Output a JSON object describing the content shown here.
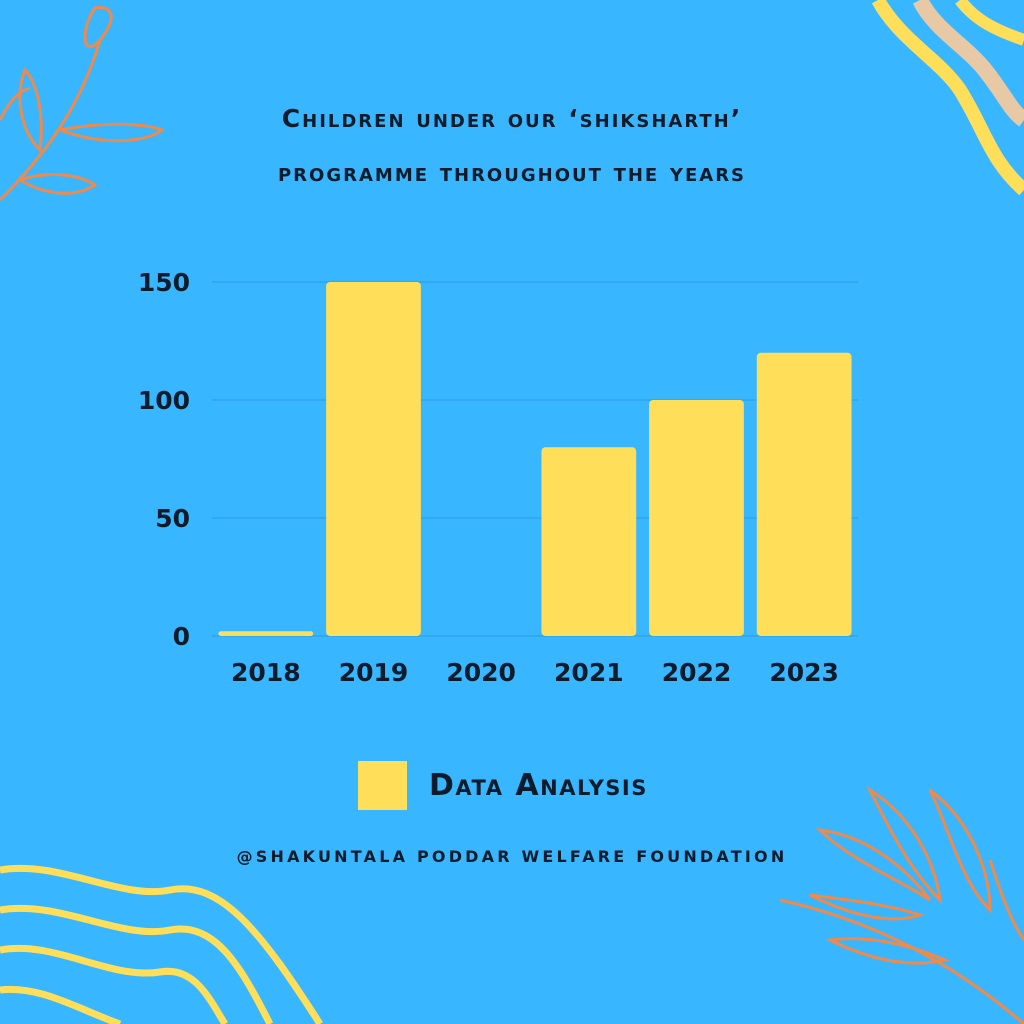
{
  "header": {
    "title_line1": "Children under our ‘shiksharth’",
    "title_line2": "programme throughout the years"
  },
  "legend": {
    "label": "Data Analysis"
  },
  "footer": {
    "credit": "@SHAKUNTALA PODDAR WELFARE FOUNDATION"
  },
  "colors": {
    "background": "#38b6ff",
    "bar": "#ffde59",
    "text": "#0d1b2a",
    "gridline": "#2a9be0",
    "leaf": "#f08a4b",
    "wave": "#ffde59"
  },
  "decorations": {
    "top_left": "leaf-branch-icon",
    "top_right": "wavy-lines-icon",
    "bottom_left": "wavy-lines-icon",
    "bottom_right": "leaf-branch-icon"
  },
  "chart_data": {
    "type": "bar",
    "categories": [
      "2018",
      "2019",
      "2020",
      "2021",
      "2022",
      "2023"
    ],
    "series": [
      {
        "name": "Data Analysis",
        "values": [
          2,
          150,
          0,
          80,
          100,
          120
        ]
      }
    ],
    "ylim": [
      0,
      150
    ],
    "yticks": [
      0,
      50,
      100,
      150
    ],
    "grid": true,
    "legend_position": "bottom"
  }
}
